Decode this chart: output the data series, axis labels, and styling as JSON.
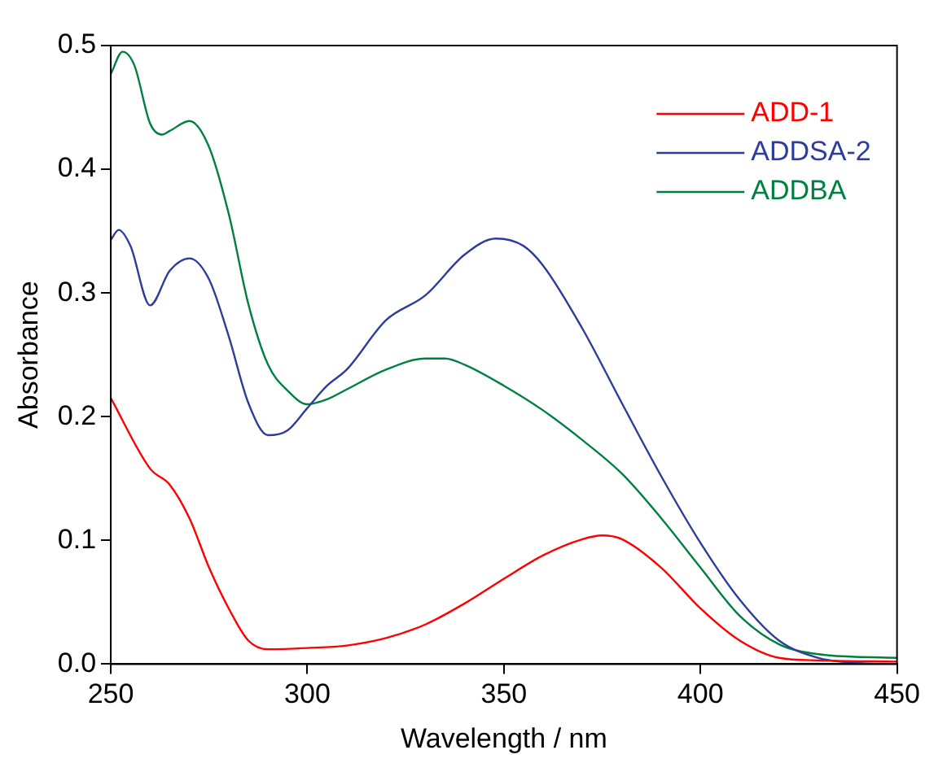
{
  "chart_data": {
    "type": "line",
    "xlabel": "Wavelength / nm",
    "ylabel": "Absorbance",
    "xlim": [
      250,
      450
    ],
    "xticks": [
      250,
      300,
      350,
      400,
      450
    ],
    "ylim": [
      0,
      0.5
    ],
    "yticks": [
      {
        "value": 0,
        "label": "0.0"
      },
      0.1,
      0.2,
      0.3,
      0.4,
      0.5
    ],
    "grid": false,
    "legend": "top right",
    "marker": "none",
    "line_style": "solid",
    "series": [
      {
        "name": "ADD-1",
        "color": "#ff0000",
        "x": [
          250,
          260,
          265,
          270,
          275,
          280,
          285,
          290,
          300,
          310,
          320,
          330,
          340,
          350,
          360,
          370,
          375,
          380,
          390,
          400,
          410,
          420,
          430,
          450
        ],
        "values": [
          0.215,
          0.158,
          0.145,
          0.118,
          0.078,
          0.045,
          0.019,
          0.012,
          0.013,
          0.015,
          0.021,
          0.032,
          0.049,
          0.069,
          0.088,
          0.101,
          0.104,
          0.101,
          0.078,
          0.045,
          0.019,
          0.005,
          0.003,
          0.002
        ]
      },
      {
        "name": "ADDSA-2",
        "color": "#2e3d99",
        "x": [
          250,
          252,
          255,
          260,
          265,
          270,
          275,
          280,
          285,
          290,
          295,
          300,
          305,
          310,
          320,
          330,
          340,
          348,
          355,
          360,
          370,
          380,
          390,
          400,
          410,
          420,
          430,
          440,
          450
        ],
        "values": [
          0.343,
          0.351,
          0.338,
          0.29,
          0.318,
          0.328,
          0.311,
          0.265,
          0.211,
          0.185,
          0.189,
          0.207,
          0.225,
          0.238,
          0.278,
          0.298,
          0.331,
          0.344,
          0.338,
          0.322,
          0.271,
          0.211,
          0.152,
          0.098,
          0.052,
          0.019,
          0.005,
          0.001,
          0.0
        ]
      },
      {
        "name": "ADDBA",
        "color": "#008040",
        "x": [
          250,
          253,
          256,
          260,
          263,
          265,
          270,
          275,
          280,
          285,
          290,
          295,
          300,
          305,
          310,
          320,
          330,
          335,
          340,
          350,
          360,
          370,
          380,
          390,
          400,
          410,
          420,
          430,
          450
        ],
        "values": [
          0.477,
          0.495,
          0.484,
          0.437,
          0.428,
          0.431,
          0.439,
          0.418,
          0.364,
          0.291,
          0.242,
          0.221,
          0.21,
          0.214,
          0.222,
          0.238,
          0.247,
          0.247,
          0.242,
          0.225,
          0.205,
          0.181,
          0.154,
          0.118,
          0.078,
          0.039,
          0.016,
          0.008,
          0.005
        ]
      }
    ]
  }
}
